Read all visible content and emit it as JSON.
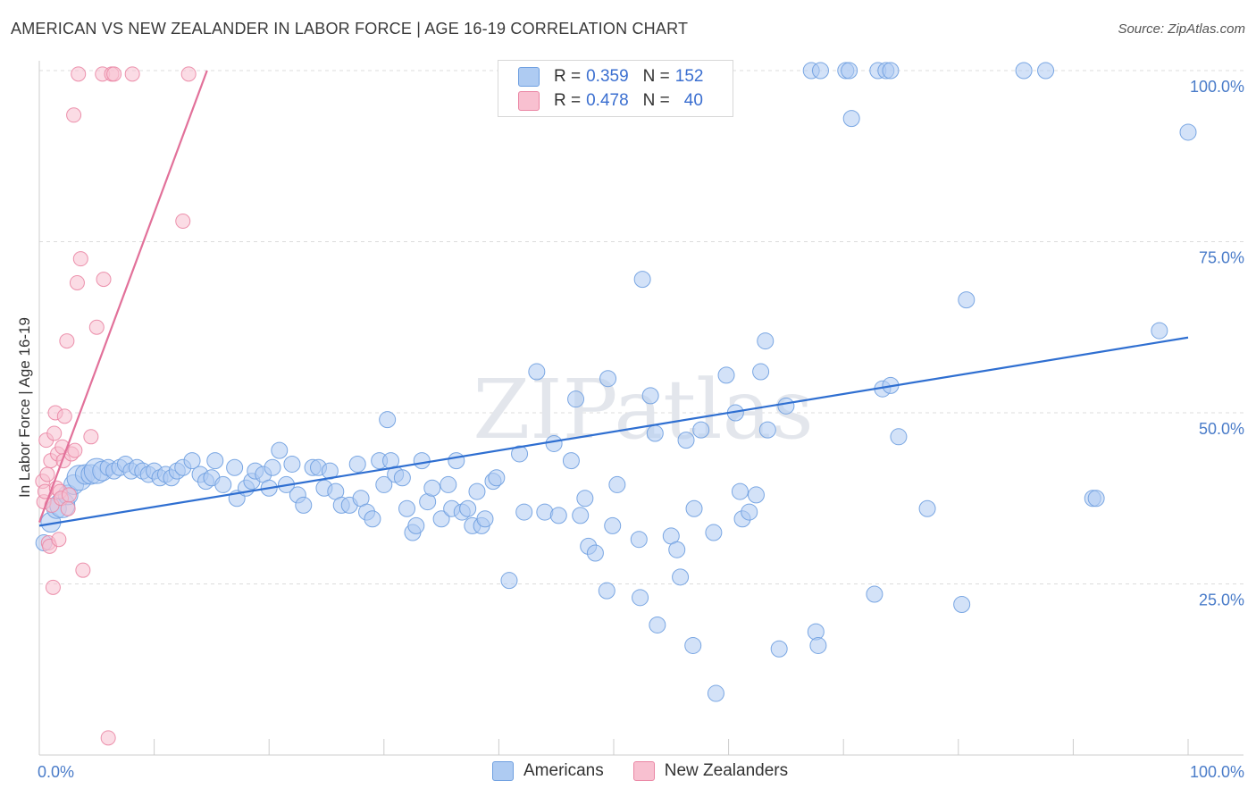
{
  "title": "AMERICAN VS NEW ZEALANDER IN LABOR FORCE | AGE 16-19 CORRELATION CHART",
  "source": "Source: ZipAtlas.com",
  "watermark": "ZIPatlas",
  "legend": {
    "r_label": "R =",
    "n_label": "N =",
    "rows": [
      {
        "name": "Americans",
        "r": "0.359",
        "n": "152",
        "fill": "#aecbf2",
        "stroke": "#6e9fe0"
      },
      {
        "name": "New Zealanders",
        "r": "0.478",
        "n": "40",
        "fill": "#f8c0d0",
        "stroke": "#ea86a4"
      }
    ]
  },
  "chart_data": {
    "type": "scatter",
    "title": "AMERICAN VS NEW ZEALANDER IN LABOR FORCE | AGE 16-19 CORRELATION CHART",
    "xlabel": "",
    "ylabel": "In Labor Force | Age 16-19",
    "xlim": [
      0,
      1
    ],
    "ylim": [
      0,
      1
    ],
    "x_tick_labels": [
      "0.0%",
      "100.0%"
    ],
    "y_tick_labels": [
      {
        "value": 1.0,
        "label": "100.0%"
      },
      {
        "value": 0.75,
        "label": "75.0%"
      },
      {
        "value": 0.5,
        "label": "50.0%"
      },
      {
        "value": 0.25,
        "label": "25.0%"
      }
    ],
    "series": [
      {
        "name": "Americans",
        "color": "#6e9fe0",
        "fill": "#aecbf2",
        "trendline": {
          "x0": 0.0,
          "y0": 0.335,
          "x1": 1.0,
          "y1": 0.61
        },
        "points": [
          [
            0.004,
            0.31
          ],
          [
            0.01,
            0.34
          ],
          [
            0.015,
            0.36
          ],
          [
            0.02,
            0.365
          ],
          [
            0.025,
            0.38
          ],
          [
            0.03,
            0.395
          ],
          [
            0.035,
            0.405
          ],
          [
            0.04,
            0.41
          ],
          [
            0.045,
            0.41
          ],
          [
            0.05,
            0.415
          ],
          [
            0.055,
            0.415
          ],
          [
            0.06,
            0.42
          ],
          [
            0.065,
            0.415
          ],
          [
            0.07,
            0.42
          ],
          [
            0.075,
            0.425
          ],
          [
            0.08,
            0.415
          ],
          [
            0.085,
            0.42
          ],
          [
            0.09,
            0.415
          ],
          [
            0.095,
            0.41
          ],
          [
            0.1,
            0.415
          ],
          [
            0.105,
            0.405
          ],
          [
            0.11,
            0.41
          ],
          [
            0.115,
            0.405
          ],
          [
            0.12,
            0.415
          ],
          [
            0.125,
            0.42
          ],
          [
            0.133,
            0.43
          ],
          [
            0.14,
            0.41
          ],
          [
            0.145,
            0.4
          ],
          [
            0.15,
            0.405
          ],
          [
            0.153,
            0.43
          ],
          [
            0.16,
            0.395
          ],
          [
            0.17,
            0.42
          ],
          [
            0.172,
            0.375
          ],
          [
            0.18,
            0.39
          ],
          [
            0.185,
            0.4
          ],
          [
            0.188,
            0.415
          ],
          [
            0.195,
            0.41
          ],
          [
            0.2,
            0.39
          ],
          [
            0.203,
            0.42
          ],
          [
            0.209,
            0.445
          ],
          [
            0.215,
            0.395
          ],
          [
            0.22,
            0.425
          ],
          [
            0.225,
            0.38
          ],
          [
            0.23,
            0.365
          ],
          [
            0.238,
            0.42
          ],
          [
            0.243,
            0.42
          ],
          [
            0.248,
            0.39
          ],
          [
            0.253,
            0.415
          ],
          [
            0.258,
            0.385
          ],
          [
            0.263,
            0.365
          ],
          [
            0.27,
            0.365
          ],
          [
            0.277,
            0.425
          ],
          [
            0.28,
            0.375
          ],
          [
            0.285,
            0.355
          ],
          [
            0.29,
            0.345
          ],
          [
            0.296,
            0.43
          ],
          [
            0.3,
            0.395
          ],
          [
            0.303,
            0.49
          ],
          [
            0.306,
            0.43
          ],
          [
            0.31,
            0.41
          ],
          [
            0.316,
            0.405
          ],
          [
            0.32,
            0.36
          ],
          [
            0.325,
            0.325
          ],
          [
            0.328,
            0.335
          ],
          [
            0.333,
            0.43
          ],
          [
            0.338,
            0.37
          ],
          [
            0.342,
            0.39
          ],
          [
            0.35,
            0.345
          ],
          [
            0.356,
            0.395
          ],
          [
            0.359,
            0.36
          ],
          [
            0.363,
            0.43
          ],
          [
            0.368,
            0.355
          ],
          [
            0.373,
            0.36
          ],
          [
            0.377,
            0.335
          ],
          [
            0.381,
            0.385
          ],
          [
            0.385,
            0.335
          ],
          [
            0.388,
            0.345
          ],
          [
            0.395,
            0.4
          ],
          [
            0.398,
            0.405
          ],
          [
            0.409,
            0.255
          ],
          [
            0.418,
            0.44
          ],
          [
            0.422,
            0.355
          ],
          [
            0.433,
            0.56
          ],
          [
            0.44,
            0.355
          ],
          [
            0.448,
            0.455
          ],
          [
            0.452,
            0.35
          ],
          [
            0.463,
            0.43
          ],
          [
            0.467,
            0.52
          ],
          [
            0.471,
            0.35
          ],
          [
            0.475,
            0.375
          ],
          [
            0.478,
            0.305
          ],
          [
            0.484,
            0.295
          ],
          [
            0.494,
            0.24
          ],
          [
            0.495,
            0.55
          ],
          [
            0.499,
            0.335
          ],
          [
            0.503,
            0.395
          ],
          [
            0.522,
            0.315
          ],
          [
            0.523,
            0.23
          ],
          [
            0.525,
            0.695
          ],
          [
            0.532,
            0.525
          ],
          [
            0.536,
            0.47
          ],
          [
            0.538,
            0.19
          ],
          [
            0.55,
            0.32
          ],
          [
            0.555,
            0.3
          ],
          [
            0.558,
            0.26
          ],
          [
            0.563,
            0.46
          ],
          [
            0.569,
            0.16
          ],
          [
            0.57,
            0.36
          ],
          [
            0.576,
            0.475
          ],
          [
            0.587,
            0.325
          ],
          [
            0.589,
            0.09
          ],
          [
            0.598,
            0.555
          ],
          [
            0.606,
            0.5
          ],
          [
            0.61,
            0.385
          ],
          [
            0.612,
            0.345
          ],
          [
            0.618,
            0.355
          ],
          [
            0.624,
            0.38
          ],
          [
            0.628,
            0.56
          ],
          [
            0.632,
            0.605
          ],
          [
            0.634,
            0.475
          ],
          [
            0.644,
            0.155
          ],
          [
            0.65,
            0.51
          ],
          [
            0.672,
            1.0
          ],
          [
            0.676,
            0.18
          ],
          [
            0.678,
            0.16
          ],
          [
            0.707,
            0.93
          ],
          [
            0.727,
            0.235
          ],
          [
            0.734,
            0.535
          ],
          [
            0.741,
            0.54
          ],
          [
            0.748,
            0.465
          ],
          [
            0.773,
            0.36
          ],
          [
            0.803,
            0.22
          ],
          [
            0.807,
            0.665
          ],
          [
            0.917,
            0.375
          ],
          [
            0.92,
            0.375
          ],
          [
            0.975,
            0.62
          ],
          [
            1.0,
            0.91
          ],
          [
            0.548,
            1.0
          ],
          [
            0.588,
            1.0
          ],
          [
            0.591,
            1.0
          ],
          [
            0.68,
            1.0
          ],
          [
            0.702,
            1.0
          ],
          [
            0.705,
            1.0
          ],
          [
            0.73,
            1.0
          ],
          [
            0.737,
            1.0
          ],
          [
            0.741,
            1.0
          ],
          [
            0.857,
            1.0
          ],
          [
            0.876,
            1.0
          ]
        ]
      },
      {
        "name": "New Zealanders",
        "color": "#ea86a4",
        "fill": "#f8c0d0",
        "trendline": {
          "x0": 0.0,
          "y0": 0.34,
          "x1": 0.146,
          "y1": 1.0
        },
        "points": [
          [
            0.003,
            0.4
          ],
          [
            0.004,
            0.37
          ],
          [
            0.005,
            0.385
          ],
          [
            0.006,
            0.46
          ],
          [
            0.007,
            0.41
          ],
          [
            0.008,
            0.31
          ],
          [
            0.009,
            0.305
          ],
          [
            0.01,
            0.43
          ],
          [
            0.011,
            0.365
          ],
          [
            0.012,
            0.245
          ],
          [
            0.013,
            0.47
          ],
          [
            0.014,
            0.5
          ],
          [
            0.015,
            0.39
          ],
          [
            0.016,
            0.44
          ],
          [
            0.017,
            0.315
          ],
          [
            0.018,
            0.385
          ],
          [
            0.019,
            0.375
          ],
          [
            0.02,
            0.45
          ],
          [
            0.021,
            0.43
          ],
          [
            0.022,
            0.495
          ],
          [
            0.024,
            0.605
          ],
          [
            0.025,
            0.36
          ],
          [
            0.026,
            0.38
          ],
          [
            0.028,
            0.44
          ],
          [
            0.03,
            0.935
          ],
          [
            0.031,
            0.445
          ],
          [
            0.033,
            0.69
          ],
          [
            0.034,
            0.995
          ],
          [
            0.036,
            0.725
          ],
          [
            0.038,
            0.27
          ],
          [
            0.045,
            0.465
          ],
          [
            0.05,
            0.625
          ],
          [
            0.055,
            0.995
          ],
          [
            0.056,
            0.695
          ],
          [
            0.06,
            0.025
          ],
          [
            0.063,
            0.995
          ],
          [
            0.065,
            0.995
          ],
          [
            0.081,
            0.995
          ],
          [
            0.125,
            0.78
          ],
          [
            0.13,
            0.995
          ]
        ]
      }
    ]
  }
}
